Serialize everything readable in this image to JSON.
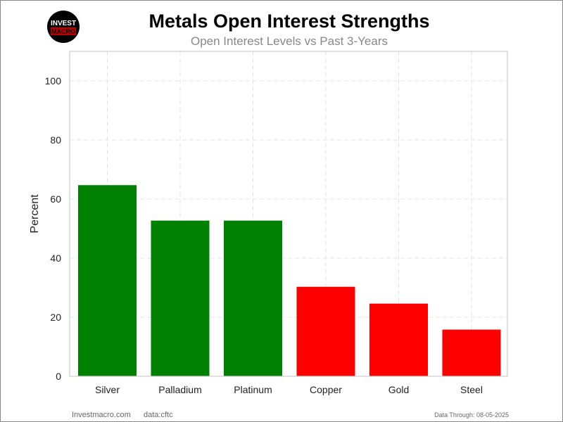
{
  "logo": {
    "line1": "INVEST",
    "line2": "MACRO"
  },
  "footer": {
    "site": "Investmacro.com",
    "source": "data:cftc",
    "date": "Data Through: 08-05-2025"
  },
  "chart_data": {
    "type": "bar",
    "title": "Metals Open Interest Strengths",
    "subtitle": "Open Interest Levels vs Past 3-Years",
    "xlabel": "",
    "ylabel": "Percent",
    "categories": [
      "Silver",
      "Palladium",
      "Platinum",
      "Copper",
      "Gold",
      "Steel"
    ],
    "values": [
      64.7,
      52.7,
      52.7,
      30.3,
      24.6,
      15.8
    ],
    "colors": [
      "#008000",
      "#008000",
      "#008000",
      "#ff0000",
      "#ff0000",
      "#ff0000"
    ],
    "ylim": [
      0,
      110
    ],
    "yticks": [
      0,
      20,
      40,
      60,
      80,
      100
    ],
    "grid": true,
    "legend": "none"
  }
}
